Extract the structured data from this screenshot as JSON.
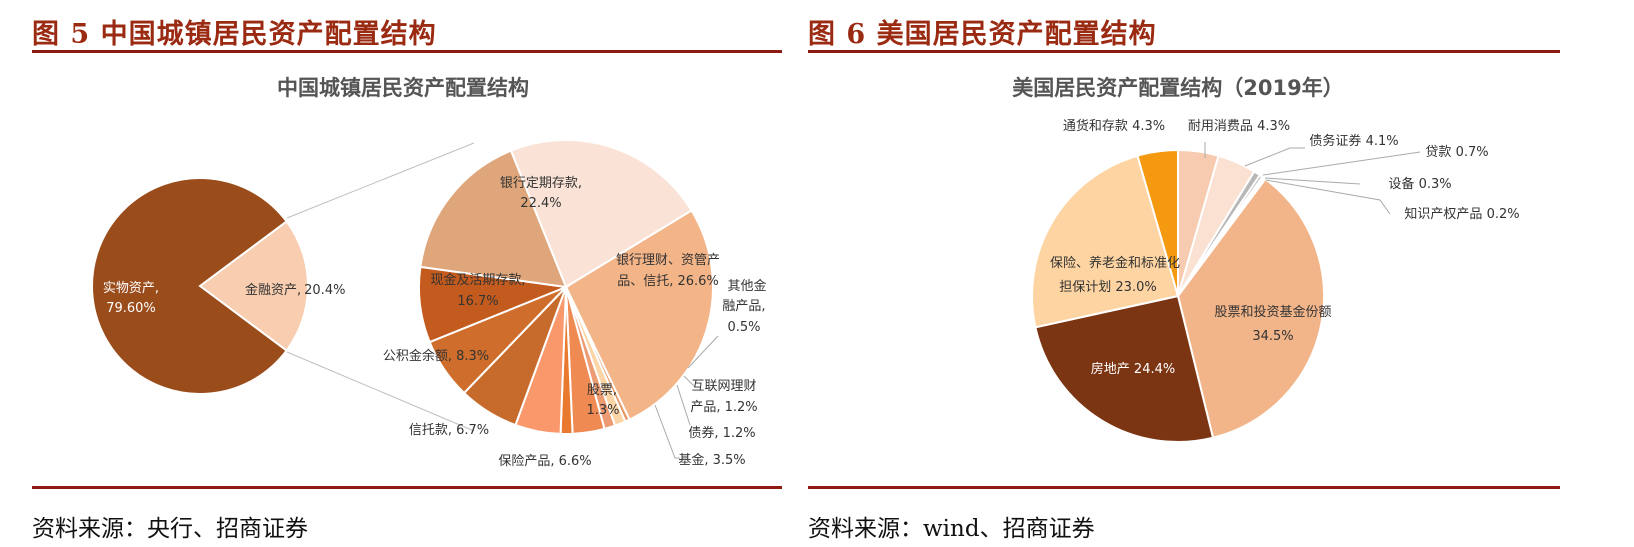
{
  "figures": {
    "left": {
      "title": "图 5 中国城镇居民资产配置结构",
      "source": "资料来源：央行、招商证券"
    },
    "right": {
      "title": "图 6 美国居民资产配置结构",
      "source": "资料来源：wind、招商证券"
    }
  },
  "colors": {
    "rule": "#8e1b12",
    "title": "#9b2a12",
    "left_main": [
      "#9a4c1b",
      "#f8cdb0"
    ],
    "left_detail": [
      "#fae3d6",
      "#f3b488",
      "#e69a6a",
      "#fbd5a6",
      "#ec9b72",
      "#ee8a52",
      "#e9792f",
      "#f9986b",
      "#c76b2d",
      "#cf6e2c",
      "#c45b1e",
      "#dfa67c"
    ],
    "right": [
      "#f6cbb0",
      "#fbe1d2",
      "#b8b8b8",
      "#9a9a9a",
      "#909090",
      "#a4a4a4",
      "#f2b58a",
      "#7b3513",
      "#fdd4a2",
      "#f59a10"
    ]
  },
  "chart_data": [
    {
      "type": "pie",
      "variant": "pie-of-pie",
      "title": "中国城镇居民资产配置结构",
      "main": {
        "slices": [
          {
            "label": "实物资产,",
            "value_label": "79.60%",
            "value": 79.6
          },
          {
            "label": "金融资产,",
            "value_label": "20.4%",
            "value": 20.4
          }
        ]
      },
      "detail": {
        "slices": [
          {
            "label": "银行定期存款,",
            "value_label": "22.4%",
            "value": 22.4
          },
          {
            "label": "银行理财、资管产品、信托,",
            "value_label": "26.6%",
            "value": 26.6
          },
          {
            "label": "其他金融产品,",
            "value_label": "0.5%",
            "value": 0.5
          },
          {
            "label": "互联网理财产品,",
            "value_label": "1.2%",
            "value": 1.2
          },
          {
            "label": "债券,",
            "value_label": "1.2%",
            "value": 1.2
          },
          {
            "label": "基金,",
            "value_label": "3.5%",
            "value": 3.5
          },
          {
            "label": "股票,",
            "value_label": "1.3%",
            "value": 1.3
          },
          {
            "label": "",
            "value_label": "",
            "value": 5.0
          },
          {
            "label": "保险产品,",
            "value_label": "6.6%",
            "value": 6.6
          },
          {
            "label": "信托款,",
            "value_label": "6.7%",
            "value": 6.7
          },
          {
            "label": "公积金余额,",
            "value_label": "8.3%",
            "value": 8.3
          },
          {
            "label": "现金及活期存款,",
            "value_label": "16.7%",
            "value": 16.7
          }
        ]
      }
    },
    {
      "type": "pie",
      "title": "美国居民资产配置结构（2019年）",
      "slices": [
        {
          "label": "耐用消费品",
          "value_label": "4.3%",
          "value": 4.3
        },
        {
          "label": "债务证券",
          "value_label": "4.1%",
          "value": 4.1
        },
        {
          "label": "贷款",
          "value_label": "0.7%",
          "value": 0.7
        },
        {
          "label": "设备",
          "value_label": "0.3%",
          "value": 0.3
        },
        {
          "label": "知识产权产品",
          "value_label": "0.2%",
          "value": 0.2
        },
        {
          "label": "",
          "value_label": "",
          "value": 0.2
        },
        {
          "label": "股票和投资基金份额",
          "value_label": "34.5%",
          "value": 34.5
        },
        {
          "label": "房地产",
          "value_label": "24.4%",
          "value": 24.4
        },
        {
          "label": "保险、养老金和标准化担保计划",
          "value_label": "23.0%",
          "value": 23.0
        },
        {
          "label": "通货和存款",
          "value_label": "4.3%",
          "value": 4.3
        }
      ]
    }
  ]
}
